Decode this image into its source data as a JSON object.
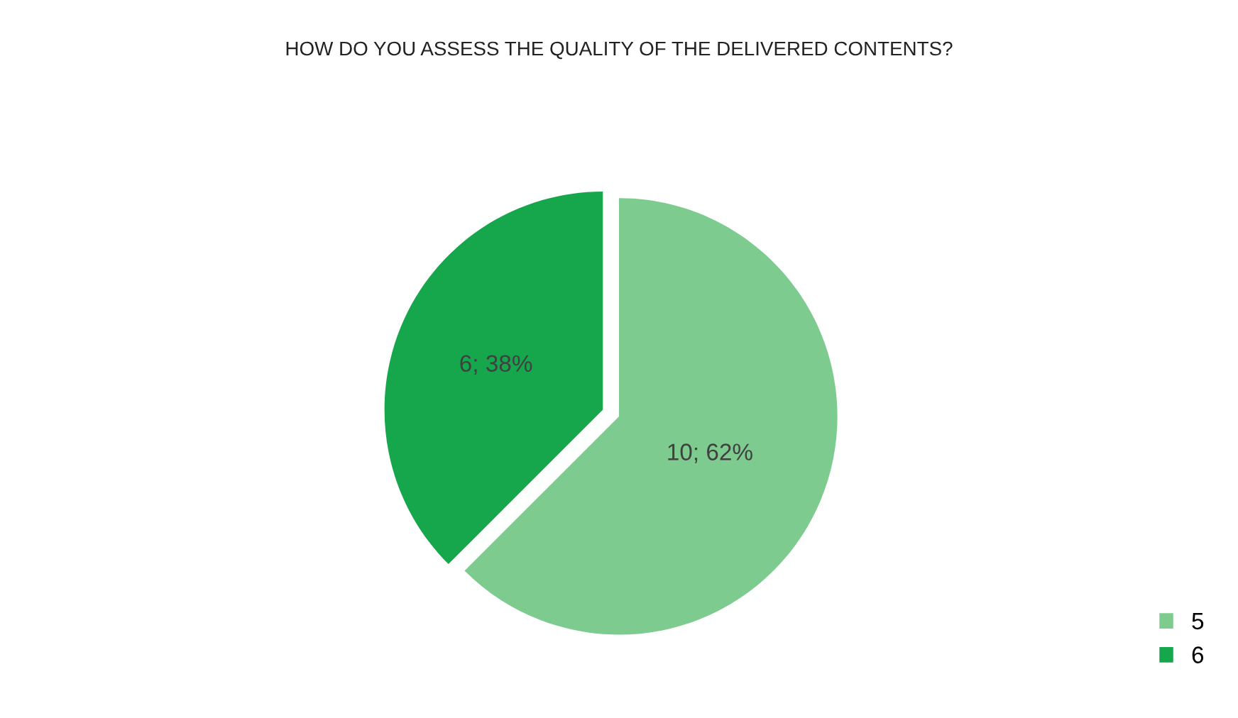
{
  "chart_data": {
    "type": "pie",
    "title": "HOW DO YOU ASSESS THE QUALITY OF THE DELIVERED CONTENTS?",
    "categories": [
      "5",
      "6"
    ],
    "values": [
      10,
      6
    ],
    "colors": [
      "#7dcb8e",
      "#16a64c"
    ],
    "value_labels": [
      "10; 62%",
      "6; 38%"
    ],
    "legend": "bottom right"
  }
}
